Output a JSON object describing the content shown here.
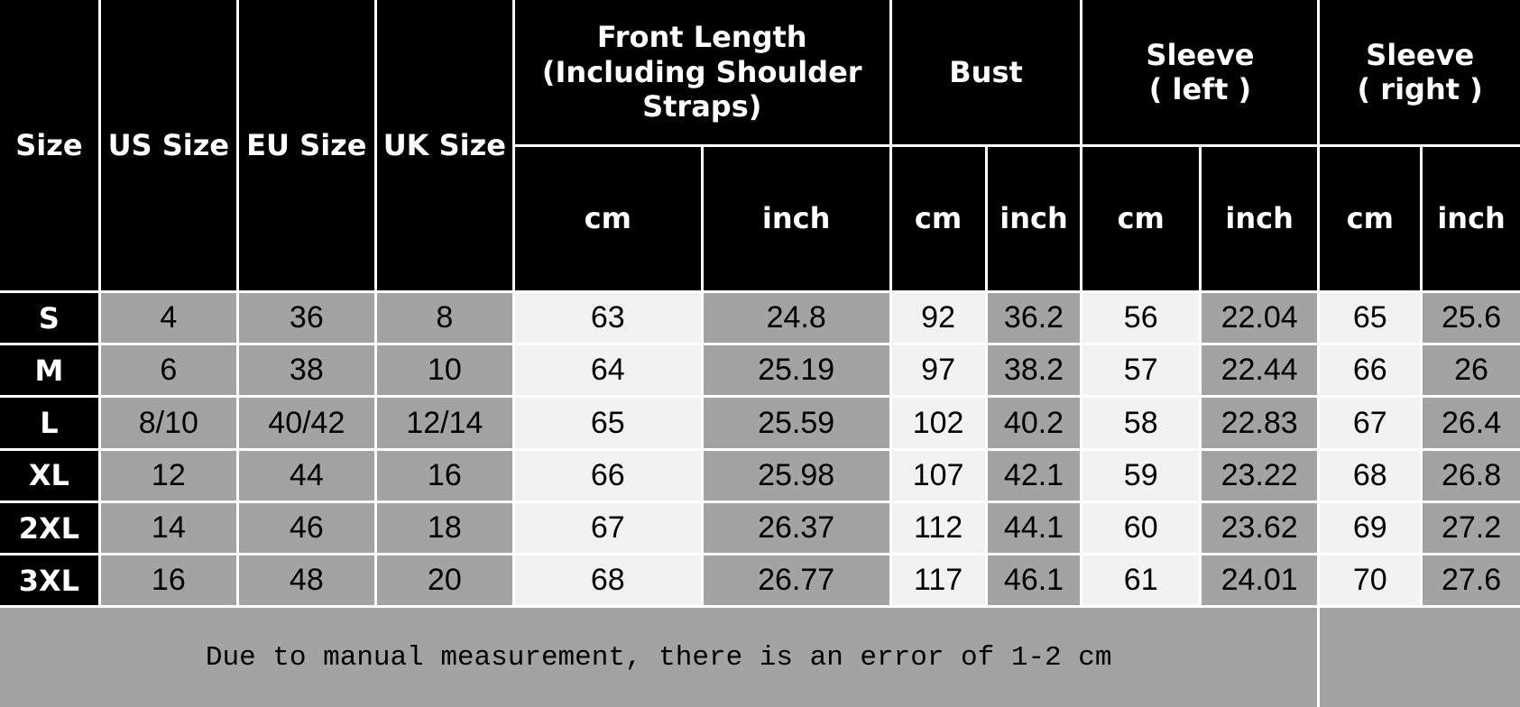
{
  "colors": {
    "header_bg": "#000000",
    "gray_cell": "#a3a3a3",
    "light_cell": "#f2f2f2",
    "border": "#ffffff"
  },
  "header": {
    "size": "Size",
    "us_size": "US Size",
    "eu_size": "EU Size",
    "uk_size": "UK Size",
    "front_length": "Front Length (Including Shoulder Straps)",
    "bust": "Bust",
    "sleeve_left_line1": "Sleeve",
    "sleeve_left_line2": "( left )",
    "sleeve_right_line1": "Sleeve",
    "sleeve_right_line2": "( right )",
    "units": [
      "cm",
      "inch",
      "cm",
      "inch",
      "cm",
      "inch",
      "cm",
      "inch"
    ]
  },
  "rows": [
    [
      "S",
      "4",
      "36",
      "8",
      "63",
      "24.8",
      "92",
      "36.2",
      "56",
      "22.04",
      "65",
      "25.6"
    ],
    [
      "M",
      "6",
      "38",
      "10",
      "64",
      "25.19",
      "97",
      "38.2",
      "57",
      "22.44",
      "66",
      "26"
    ],
    [
      "L",
      "8/10",
      "40/42",
      "12/14",
      "65",
      "25.59",
      "102",
      "40.2",
      "58",
      "22.83",
      "67",
      "26.4"
    ],
    [
      "XL",
      "12",
      "44",
      "16",
      "66",
      "25.98",
      "107",
      "42.1",
      "59",
      "23.22",
      "68",
      "26.8"
    ],
    [
      "2XL",
      "14",
      "46",
      "18",
      "67",
      "26.37",
      "112",
      "44.1",
      "60",
      "23.62",
      "69",
      "27.2"
    ],
    [
      "3XL",
      "16",
      "48",
      "20",
      "68",
      "26.77",
      "117",
      "46.1",
      "61",
      "24.01",
      "70",
      "27.6"
    ]
  ],
  "footer": {
    "note": "Due to manual measurement, there is an error of 1-2 cm"
  }
}
